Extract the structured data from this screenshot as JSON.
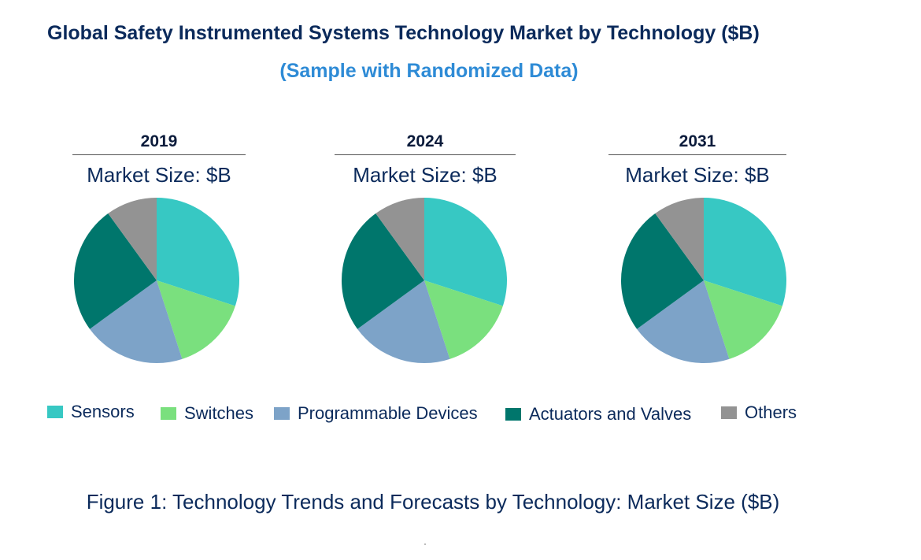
{
  "title": "Global Safety Instrumented Systems Technology Market by Technology ($B)",
  "subtitle": "(Sample with Randomized Data)",
  "caption": "Figure 1: Technology Trends and Forecasts by Technology: Market Size ($B)",
  "legend": [
    {
      "label": "Sensors",
      "color": "#37c8c3"
    },
    {
      "label": "Switches",
      "color": "#7ae07e"
    },
    {
      "label": "Programmable Devices",
      "color": "#7da3c8"
    },
    {
      "label": "Actuators and Valves",
      "color": "#00766c"
    },
    {
      "label": "Others",
      "color": "#939393"
    }
  ],
  "chart_data": [
    {
      "type": "pie",
      "title": "2019",
      "subtitle": "Market Size: $B",
      "labels": [
        "Sensors",
        "Switches",
        "Programmable Devices",
        "Actuators and Valves",
        "Others"
      ],
      "values": [
        30,
        15,
        20,
        25,
        10
      ],
      "colors": [
        "#37c8c3",
        "#7ae07e",
        "#7da3c8",
        "#00766c",
        "#939393"
      ]
    },
    {
      "type": "pie",
      "title": "2024",
      "subtitle": "Market Size: $B",
      "labels": [
        "Sensors",
        "Switches",
        "Programmable Devices",
        "Actuators and Valves",
        "Others"
      ],
      "values": [
        30,
        15,
        20,
        25,
        10
      ],
      "colors": [
        "#37c8c3",
        "#7ae07e",
        "#7da3c8",
        "#00766c",
        "#939393"
      ]
    },
    {
      "type": "pie",
      "title": "2031",
      "subtitle": "Market Size: $B",
      "labels": [
        "Sensors",
        "Switches",
        "Programmable Devices",
        "Actuators and Valves",
        "Others"
      ],
      "values": [
        30,
        15,
        20,
        25,
        10
      ],
      "colors": [
        "#37c8c3",
        "#7ae07e",
        "#7da3c8",
        "#00766c",
        "#939393"
      ]
    }
  ]
}
